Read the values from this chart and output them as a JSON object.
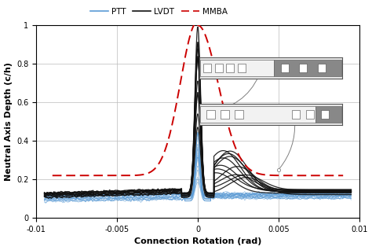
{
  "xlabel": "Connection Rotation (rad)",
  "ylabel": "Neutral Axis Depth (c/h)",
  "xlim": [
    -0.01,
    0.01
  ],
  "ylim": [
    0,
    1.0
  ],
  "xticks": [
    -0.01,
    -0.005,
    0,
    0.005,
    0.01
  ],
  "yticks": [
    0,
    0.2,
    0.4,
    0.6,
    0.8,
    1.0
  ],
  "ptt_color": "#5b9bd5",
  "lvdt_color": "#111111",
  "mmba_color": "#cc0000",
  "background_color": "#ffffff",
  "grid_color": "#bbbbbb",
  "inset1_light": "#f0f0f0",
  "inset1_dark": "#909090",
  "inset2_light": "#f0f0f0",
  "inset2_dark": "#909090"
}
